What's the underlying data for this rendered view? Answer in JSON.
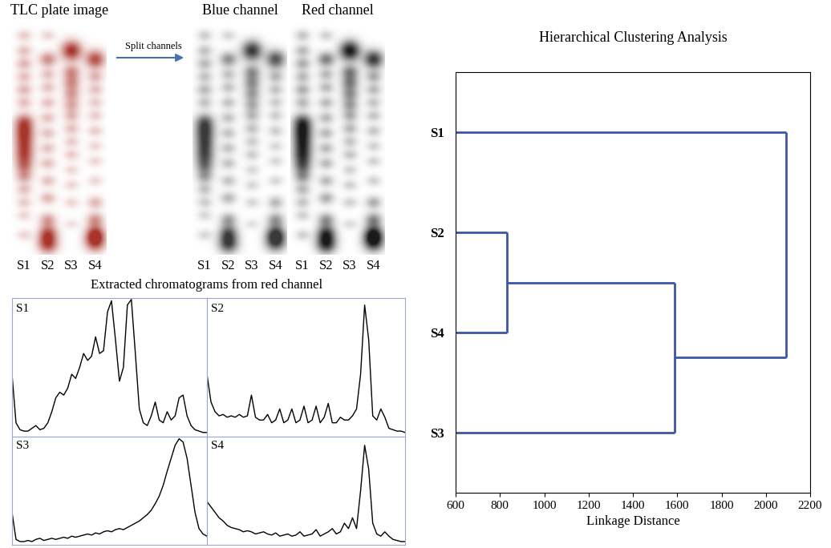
{
  "chart_data": [
    {
      "type": "tlc",
      "panels": [
        {
          "title": "TLC plate image",
          "color": "#a8352c"
        },
        {
          "title": "Blue channel",
          "color": "#3a3a3a"
        },
        {
          "title": "Red channel",
          "color": "#1a1a1a"
        }
      ],
      "annotation": "Split channels",
      "lanes": [
        "S1",
        "S2",
        "S3",
        "S4"
      ],
      "spots": [
        [
          [
            0.97,
            0.25
          ],
          [
            0.9,
            0.3
          ],
          [
            0.84,
            0.35
          ],
          [
            0.78,
            0.3
          ],
          [
            0.72,
            0.35
          ],
          [
            0.66,
            0.3
          ],
          [
            0.57,
            0.75
          ],
          [
            0.52,
            0.8
          ],
          [
            0.47,
            0.7
          ],
          [
            0.42,
            0.75
          ],
          [
            0.37,
            0.6
          ],
          [
            0.32,
            0.45
          ],
          [
            0.26,
            0.3
          ],
          [
            0.2,
            0.25
          ],
          [
            0.14,
            0.2
          ],
          [
            0.05,
            0.2
          ]
        ],
        [
          [
            0.97,
            0.2
          ],
          [
            0.86,
            0.55
          ],
          [
            0.79,
            0.3
          ],
          [
            0.73,
            0.3
          ],
          [
            0.66,
            0.3
          ],
          [
            0.59,
            0.3
          ],
          [
            0.52,
            0.3
          ],
          [
            0.45,
            0.3
          ],
          [
            0.38,
            0.3
          ],
          [
            0.3,
            0.3
          ],
          [
            0.22,
            0.35
          ],
          [
            0.12,
            0.45
          ],
          [
            0.06,
            0.7
          ],
          [
            0.01,
            0.9
          ]
        ],
        [
          [
            0.9,
            1.0
          ],
          [
            0.8,
            0.55
          ],
          [
            0.75,
            0.5
          ],
          [
            0.7,
            0.45
          ],
          [
            0.65,
            0.4
          ],
          [
            0.6,
            0.35
          ],
          [
            0.54,
            0.3
          ],
          [
            0.48,
            0.25
          ],
          [
            0.42,
            0.25
          ],
          [
            0.35,
            0.2
          ],
          [
            0.28,
            0.2
          ],
          [
            0.2,
            0.2
          ],
          [
            0.1,
            0.15
          ]
        ],
        [
          [
            0.86,
            0.85
          ],
          [
            0.78,
            0.35
          ],
          [
            0.72,
            0.3
          ],
          [
            0.66,
            0.25
          ],
          [
            0.6,
            0.25
          ],
          [
            0.53,
            0.25
          ],
          [
            0.46,
            0.2
          ],
          [
            0.39,
            0.2
          ],
          [
            0.3,
            0.2
          ],
          [
            0.2,
            0.35
          ],
          [
            0.12,
            0.5
          ],
          [
            0.06,
            0.7
          ],
          [
            0.02,
            0.95
          ]
        ]
      ]
    },
    {
      "type": "line",
      "title": "Extracted chromatograms from red channel",
      "series": [
        {
          "name": "S1",
          "color": "#000000",
          "values": [
            45,
            10,
            5,
            4,
            4,
            6,
            8,
            5,
            6,
            10,
            18,
            28,
            32,
            30,
            35,
            45,
            42,
            50,
            60,
            55,
            58,
            72,
            60,
            62,
            90,
            98,
            70,
            40,
            50,
            95,
            99,
            60,
            20,
            10,
            8,
            15,
            25,
            12,
            10,
            18,
            12,
            15,
            28,
            30,
            15,
            8,
            5,
            4,
            3,
            3
          ]
        },
        {
          "name": "S2",
          "color": "#000000",
          "values": [
            45,
            25,
            18,
            15,
            16,
            14,
            15,
            14,
            16,
            14,
            15,
            30,
            14,
            12,
            12,
            16,
            10,
            12,
            20,
            10,
            12,
            20,
            10,
            12,
            22,
            10,
            12,
            22,
            10,
            14,
            24,
            10,
            10,
            14,
            12,
            12,
            15,
            20,
            45,
            95,
            70,
            15,
            12,
            20,
            14,
            6,
            5,
            4,
            4,
            3
          ]
        },
        {
          "name": "S3",
          "color": "#000000",
          "values": [
            30,
            5,
            3,
            3,
            4,
            3,
            5,
            6,
            4,
            5,
            6,
            5,
            6,
            7,
            6,
            8,
            7,
            8,
            9,
            10,
            9,
            11,
            10,
            12,
            13,
            12,
            14,
            15,
            14,
            16,
            18,
            20,
            22,
            25,
            28,
            32,
            38,
            45,
            55,
            68,
            80,
            92,
            98,
            95,
            80,
            55,
            30,
            15,
            10,
            8
          ]
        },
        {
          "name": "S4",
          "color": "#000000",
          "values": [
            40,
            35,
            30,
            25,
            22,
            18,
            16,
            15,
            14,
            12,
            13,
            12,
            10,
            11,
            12,
            10,
            9,
            11,
            8,
            9,
            10,
            8,
            9,
            12,
            8,
            9,
            10,
            14,
            8,
            10,
            12,
            15,
            10,
            12,
            20,
            15,
            25,
            15,
            50,
            92,
            70,
            20,
            10,
            8,
            12,
            8,
            5,
            4,
            3,
            3
          ]
        }
      ],
      "xlim": [
        0,
        49
      ],
      "ylim": [
        0,
        100
      ],
      "tick_labels": false
    },
    {
      "type": "dendrogram",
      "title": "Hierarchical Clustering Analysis",
      "xlabel": "Linkage Distance",
      "leaves": [
        "S1",
        "S2",
        "S4",
        "S3"
      ],
      "merges": [
        {
          "members": [
            "S2",
            "S4"
          ],
          "distance": 830
        },
        {
          "members": [
            "S2",
            "S4",
            "S3"
          ],
          "distance": 1590
        },
        {
          "members": [
            "S1",
            "S2",
            "S4",
            "S3"
          ],
          "distance": 2090
        }
      ],
      "color": "#3d55a8",
      "xlim": [
        600,
        2200
      ],
      "xticks": [
        600,
        800,
        1000,
        1200,
        1400,
        1600,
        1800,
        2000,
        2200
      ]
    }
  ]
}
